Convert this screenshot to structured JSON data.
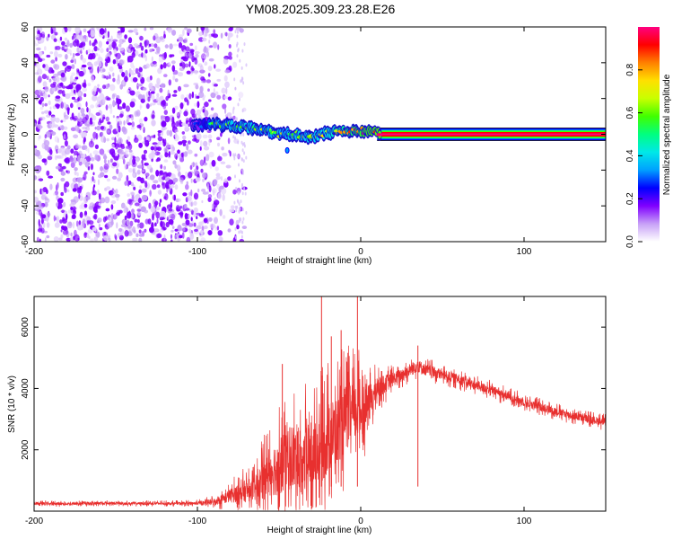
{
  "title": "YM08.2025.309.23.28.E26",
  "chart_data": [
    {
      "type": "heatmap",
      "title": "YM08.2025.309.23.28.E26",
      "xlabel": "Height of straight line (km)",
      "ylabel": "Frequency (Hz)",
      "xlim": [
        -200,
        150
      ],
      "ylim": [
        -60,
        60
      ],
      "xticks": [
        -200,
        -100,
        0,
        100
      ],
      "yticks": [
        -60,
        -40,
        -20,
        0,
        20,
        40,
        60
      ],
      "colorbar": {
        "label": "Normalized spectral amplitude",
        "range": [
          0,
          1
        ],
        "ticks": [
          0.0,
          0.2,
          0.4,
          0.6,
          0.8
        ],
        "colors": [
          "#ffffff",
          "#c7a0f7",
          "#8000ff",
          "#0000ff",
          "#00a0ff",
          "#00e8e8",
          "#00ff80",
          "#40ff00",
          "#c8ff00",
          "#ffe000",
          "#ff8000",
          "#ff0000",
          "#ff0080"
        ]
      },
      "features": [
        {
          "name": "noise",
          "x_range": [
            -200,
            -70
          ],
          "freq_range": [
            -60,
            60
          ],
          "amplitude": 0.12
        },
        {
          "name": "signal-band",
          "points": [
            {
              "x": -100,
              "freq": 5,
              "amplitude": 0.2
            },
            {
              "x": -90,
              "freq": 6,
              "amplitude": 0.5
            },
            {
              "x": -80,
              "freq": 5,
              "amplitude": 0.55
            },
            {
              "x": -70,
              "freq": 4,
              "amplitude": 0.55
            },
            {
              "x": -60,
              "freq": 2,
              "amplitude": 0.5
            },
            {
              "x": -50,
              "freq": 0,
              "amplitude": 0.5
            },
            {
              "x": -40,
              "freq": 0,
              "amplitude": 0.55
            },
            {
              "x": -30,
              "freq": -2,
              "amplitude": 0.55
            },
            {
              "x": -20,
              "freq": 1,
              "amplitude": 0.6
            },
            {
              "x": -10,
              "freq": 2,
              "amplitude": 0.7
            },
            {
              "x": 0,
              "freq": 2,
              "amplitude": 0.8
            },
            {
              "x": 10,
              "freq": 1,
              "amplitude": 0.85
            }
          ]
        },
        {
          "name": "carrier",
          "x_range": [
            10,
            150
          ],
          "freq": 0,
          "amplitude": 0.95
        }
      ]
    },
    {
      "type": "line",
      "xlabel": "Height of straight line (km)",
      "ylabel": "SNR (10 * v/v)",
      "xlim": [
        -200,
        150
      ],
      "ylim": [
        0,
        7000
      ],
      "xticks": [
        -200,
        -100,
        0,
        100
      ],
      "yticks": [
        2000,
        4000,
        6000
      ],
      "series": [
        {
          "name": "SNR",
          "color": "#e8302f",
          "x": [
            -200,
            -180,
            -160,
            -140,
            -120,
            -100,
            -90,
            -85,
            -80,
            -75,
            -70,
            -65,
            -60,
            -55,
            -50,
            -45,
            -40,
            -35,
            -30,
            -25,
            -20,
            -15,
            -10,
            -5,
            0,
            5,
            10,
            20,
            30,
            35,
            40,
            50,
            60,
            70,
            80,
            90,
            100,
            110,
            120,
            130,
            140,
            150
          ],
          "values": [
            250,
            240,
            260,
            250,
            250,
            260,
            300,
            400,
            500,
            600,
            650,
            700,
            1000,
            1300,
            1500,
            1800,
            1700,
            1600,
            1800,
            2000,
            2400,
            2600,
            3000,
            3200,
            3300,
            3500,
            4000,
            4300,
            4600,
            4750,
            4600,
            4450,
            4300,
            4100,
            3950,
            3750,
            3550,
            3400,
            3250,
            3100,
            3000,
            2900
          ],
          "amplitude": [
            100,
            100,
            100,
            100,
            100,
            110,
            250,
            350,
            500,
            700,
            800,
            900,
            1400,
            1800,
            2200,
            2500,
            2400,
            2500,
            2700,
            2600,
            2600,
            2500,
            2400,
            2200,
            2000,
            1400,
            800,
            500,
            450,
            450,
            400,
            380,
            360,
            340,
            330,
            320,
            300,
            300,
            290,
            280,
            280,
            280
          ]
        }
      ],
      "annotations": [
        {
          "name": "spike",
          "x": -24,
          "y": 7000
        },
        {
          "name": "spike",
          "x": -18,
          "y": 5700
        },
        {
          "name": "spike",
          "x": -12,
          "y": 5900
        },
        {
          "name": "spike",
          "x": -2,
          "y": 7000
        },
        {
          "name": "spike",
          "x": -48,
          "y": 4800
        },
        {
          "name": "spike",
          "x": 35,
          "y": 5400
        }
      ]
    }
  ]
}
